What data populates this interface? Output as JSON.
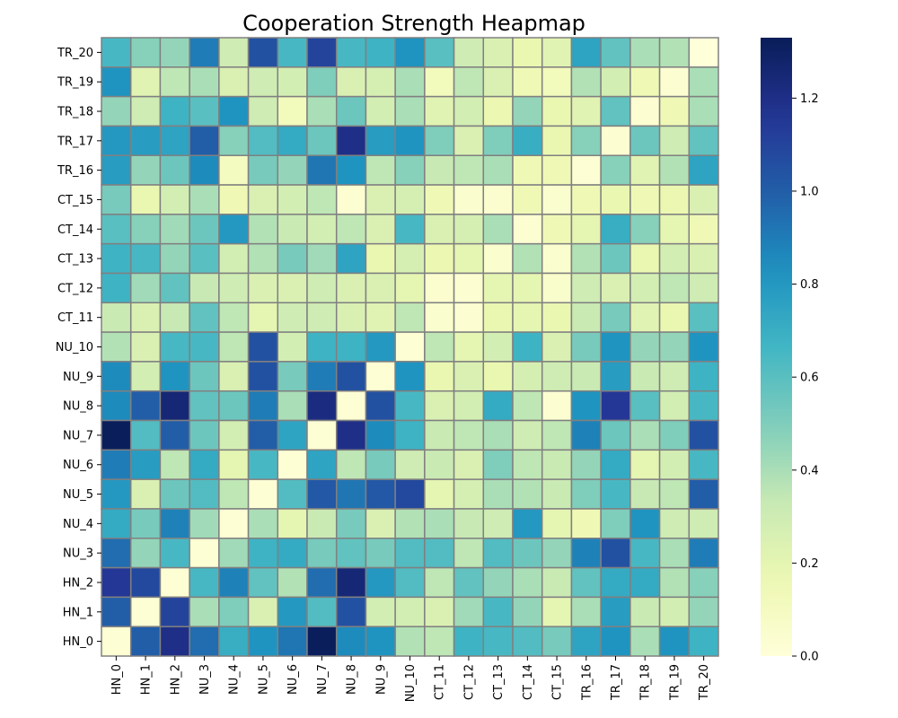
{
  "chart_data": {
    "type": "heatmap",
    "title": "Cooperation Strength Heapmap",
    "x_labels": [
      "HN_0",
      "HN_1",
      "HN_2",
      "NU_3",
      "NU_4",
      "NU_5",
      "NU_6",
      "NU_7",
      "NU_8",
      "NU_9",
      "NU_10",
      "CT_11",
      "CT_12",
      "CT_13",
      "CT_14",
      "CT_15",
      "TR_16",
      "TR_17",
      "TR_18",
      "TR_19",
      "TR_20"
    ],
    "y_labels": [
      "TR_20",
      "TR_19",
      "TR_18",
      "TR_17",
      "TR_16",
      "CT_15",
      "CT_14",
      "CT_13",
      "CT_12",
      "CT_11",
      "NU_10",
      "NU_9",
      "NU_8",
      "NU_7",
      "NU_6",
      "NU_5",
      "NU_4",
      "NU_3",
      "HN_2",
      "HN_1",
      "HN_0"
    ],
    "values": [
      [
        0.65,
        0.48,
        0.45,
        0.9,
        0.3,
        1.05,
        0.65,
        1.1,
        0.65,
        0.68,
        0.82,
        0.6,
        0.3,
        0.25,
        0.18,
        0.22,
        0.75,
        0.58,
        0.4,
        0.38,
        0.0
      ],
      [
        0.82,
        0.22,
        0.35,
        0.4,
        0.25,
        0.3,
        0.28,
        0.5,
        0.25,
        0.27,
        0.4,
        0.12,
        0.35,
        0.25,
        0.15,
        0.12,
        0.38,
        0.28,
        0.15,
        0.03,
        0.4
      ],
      [
        0.45,
        0.3,
        0.68,
        0.6,
        0.82,
        0.3,
        0.12,
        0.4,
        0.55,
        0.28,
        0.4,
        0.22,
        0.28,
        0.17,
        0.45,
        0.18,
        0.22,
        0.58,
        0.03,
        0.15,
        0.4
      ],
      [
        0.8,
        0.78,
        0.75,
        1.0,
        0.48,
        0.62,
        0.72,
        0.55,
        1.2,
        0.78,
        0.82,
        0.5,
        0.25,
        0.5,
        0.7,
        0.18,
        0.48,
        0.03,
        0.55,
        0.3,
        0.58
      ],
      [
        0.78,
        0.45,
        0.55,
        0.85,
        0.1,
        0.52,
        0.45,
        0.92,
        0.82,
        0.35,
        0.48,
        0.33,
        0.35,
        0.4,
        0.15,
        0.15,
        0.02,
        0.48,
        0.22,
        0.38,
        0.75
      ],
      [
        0.52,
        0.18,
        0.28,
        0.4,
        0.15,
        0.25,
        0.28,
        0.35,
        0.03,
        0.25,
        0.27,
        0.15,
        0.05,
        0.04,
        0.15,
        0.05,
        0.15,
        0.18,
        0.15,
        0.17,
        0.25
      ],
      [
        0.6,
        0.48,
        0.42,
        0.55,
        0.8,
        0.38,
        0.32,
        0.28,
        0.35,
        0.25,
        0.65,
        0.25,
        0.27,
        0.4,
        0.03,
        0.15,
        0.2,
        0.7,
        0.48,
        0.2,
        0.15
      ],
      [
        0.68,
        0.65,
        0.45,
        0.6,
        0.28,
        0.38,
        0.52,
        0.42,
        0.75,
        0.18,
        0.27,
        0.17,
        0.2,
        0.05,
        0.38,
        0.05,
        0.38,
        0.55,
        0.18,
        0.28,
        0.25
      ],
      [
        0.68,
        0.42,
        0.58,
        0.33,
        0.3,
        0.25,
        0.25,
        0.3,
        0.25,
        0.25,
        0.2,
        0.04,
        0.03,
        0.2,
        0.2,
        0.06,
        0.3,
        0.25,
        0.28,
        0.35,
        0.3
      ],
      [
        0.32,
        0.25,
        0.33,
        0.58,
        0.35,
        0.2,
        0.3,
        0.3,
        0.25,
        0.22,
        0.35,
        0.05,
        0.03,
        0.18,
        0.2,
        0.18,
        0.32,
        0.52,
        0.22,
        0.18,
        0.6
      ],
      [
        0.38,
        0.25,
        0.65,
        0.65,
        0.35,
        1.05,
        0.28,
        0.68,
        0.68,
        0.8,
        0.02,
        0.35,
        0.2,
        0.28,
        0.68,
        0.25,
        0.52,
        0.82,
        0.45,
        0.45,
        0.82
      ],
      [
        0.85,
        0.28,
        0.82,
        0.55,
        0.25,
        1.05,
        0.52,
        0.9,
        1.05,
        0.02,
        0.82,
        0.18,
        0.25,
        0.18,
        0.27,
        0.3,
        0.32,
        0.78,
        0.32,
        0.3,
        0.68
      ],
      [
        0.85,
        1.0,
        1.25,
        0.58,
        0.55,
        0.9,
        0.4,
        1.22,
        0.02,
        1.05,
        0.65,
        0.25,
        0.28,
        0.72,
        0.35,
        0.03,
        0.82,
        1.15,
        0.6,
        0.28,
        0.65
      ],
      [
        1.32,
        0.62,
        1.0,
        0.55,
        0.28,
        1.0,
        0.75,
        0.02,
        1.2,
        0.85,
        0.68,
        0.32,
        0.35,
        0.4,
        0.3,
        0.35,
        0.88,
        0.55,
        0.4,
        0.5,
        1.05
      ],
      [
        0.9,
        0.78,
        0.35,
        0.72,
        0.2,
        0.65,
        0.02,
        0.75,
        0.35,
        0.52,
        0.3,
        0.32,
        0.25,
        0.5,
        0.35,
        0.32,
        0.45,
        0.72,
        0.2,
        0.28,
        0.65
      ],
      [
        0.8,
        0.25,
        0.55,
        0.62,
        0.35,
        0.02,
        0.62,
        1.02,
        0.92,
        1.02,
        1.08,
        0.2,
        0.27,
        0.4,
        0.38,
        0.32,
        0.5,
        0.65,
        0.33,
        0.35,
        1.0
      ],
      [
        0.72,
        0.52,
        0.88,
        0.42,
        0.02,
        0.4,
        0.2,
        0.32,
        0.52,
        0.25,
        0.38,
        0.4,
        0.33,
        0.3,
        0.8,
        0.2,
        0.15,
        0.5,
        0.82,
        0.3,
        0.3
      ],
      [
        0.95,
        0.45,
        0.65,
        0.02,
        0.42,
        0.68,
        0.72,
        0.52,
        0.58,
        0.52,
        0.62,
        0.62,
        0.35,
        0.62,
        0.55,
        0.45,
        0.88,
        1.05,
        0.65,
        0.4,
        0.9
      ],
      [
        1.15,
        1.08,
        0.02,
        0.65,
        0.88,
        0.58,
        0.38,
        0.95,
        1.25,
        0.8,
        0.62,
        0.35,
        0.58,
        0.45,
        0.4,
        0.32,
        0.58,
        0.72,
        0.72,
        0.38,
        0.48
      ],
      [
        1.0,
        0.02,
        1.1,
        0.4,
        0.5,
        0.25,
        0.8,
        0.62,
        1.05,
        0.28,
        0.28,
        0.25,
        0.42,
        0.65,
        0.45,
        0.2,
        0.4,
        0.78,
        0.32,
        0.28,
        0.45
      ],
      [
        0.02,
        1.0,
        1.2,
        0.95,
        0.7,
        0.82,
        0.92,
        1.32,
        0.85,
        0.82,
        0.38,
        0.35,
        0.68,
        0.65,
        0.62,
        0.52,
        0.75,
        0.82,
        0.4,
        0.82,
        0.68
      ]
    ],
    "vmin": 0.0,
    "vmax": 1.33,
    "colorbar_ticks": [
      "0.0",
      "0.2",
      "0.4",
      "0.6",
      "0.8",
      "1.0",
      "1.2"
    ],
    "colormap": "YlGnBu",
    "cell_border_color": "#808080"
  }
}
